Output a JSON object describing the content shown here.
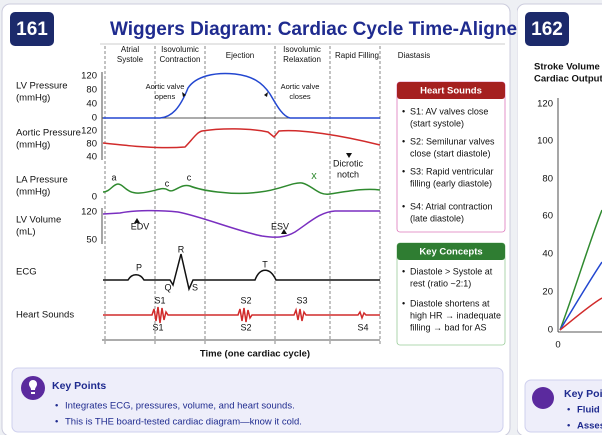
{
  "left_card": {
    "number": "161",
    "title": "Wiggers Diagram: Cardiac Cycle Time-Aligned",
    "phases": [
      [
        "Atrial",
        "Systole"
      ],
      [
        "Isovolumic",
        "Contraction"
      ],
      [
        "Ejection"
      ],
      [
        "Isovolumic",
        "Relaxation"
      ],
      [
        "Rapid Filling"
      ],
      [
        "Diastasis"
      ]
    ],
    "rows": [
      [
        "LV Pressure",
        "(mmHg)"
      ],
      [
        "Aortic Pressure",
        "(mmHg)"
      ],
      [
        "LA Pressure",
        "(mmHg)"
      ],
      [
        "LV Volume",
        "(mL)"
      ],
      [
        "ECG"
      ],
      [
        "Heart Sounds"
      ]
    ],
    "ticks": {
      "lv_pressure": [
        "120",
        "80",
        "40",
        "0"
      ],
      "aortic_pressure": [
        "120",
        "80",
        "40"
      ],
      "la_pressure": [
        "0"
      ],
      "lv_volume": [
        "120",
        "50"
      ]
    },
    "annotations": {
      "aortic_valve_opens": [
        "Aortic valve",
        "opens"
      ],
      "aortic_valve_closes": [
        "Aortic valve",
        "closes"
      ],
      "dicrotic_notch": [
        "Dicrotic",
        "notch"
      ],
      "la_a": "a",
      "la_c1": "c",
      "la_c2": "c",
      "la_x": "x",
      "edv": "EDV",
      "esv": "ESV",
      "ecg_p": "P",
      "ecg_r": "R",
      "ecg_q": "Q",
      "ecg_s": "S",
      "ecg_t": "T",
      "s1_top": "S1",
      "s1_bottom": "S1",
      "s2_top": "S2",
      "s2_bottom": "S2",
      "s3": "S3",
      "s4": "S4"
    },
    "x_axis_label": "Time (one cardiac cycle)",
    "heart_sounds": {
      "title": "Heart Sounds",
      "items": [
        [
          "S1: AV valves close",
          "(start systole)"
        ],
        [
          "S2: Semilunar valves",
          "close (start diastole)"
        ],
        [
          "S3: Rapid ventricular",
          "filling (early diastole)"
        ],
        [
          "S4: Atrial contraction",
          "(late diastole)"
        ]
      ]
    },
    "key_concepts": {
      "title": "Key Concepts",
      "items": [
        [
          "Diastole > Systole at",
          "rest (ratio ~2:1)"
        ],
        [
          "Diastole shortens at",
          "high HR → inadequate",
          "filling → bad for AS"
        ]
      ]
    },
    "key_points": {
      "title": "Key Points",
      "items": [
        "Integrates ECG, pressures, volume, and heart sounds.",
        "This is THE board-tested cardiac diagram—know it cold."
      ]
    }
  },
  "right_card": {
    "number": "162",
    "axis_title": [
      "Stroke Volume",
      "Cardiac Output"
    ],
    "yticks": [
      "120",
      "100",
      "80",
      "60",
      "40",
      "20",
      "0"
    ],
    "xtick": "0",
    "key_points": {
      "title": "Key Points",
      "items": [
        "Fluid",
        "Asses"
      ]
    }
  }
}
